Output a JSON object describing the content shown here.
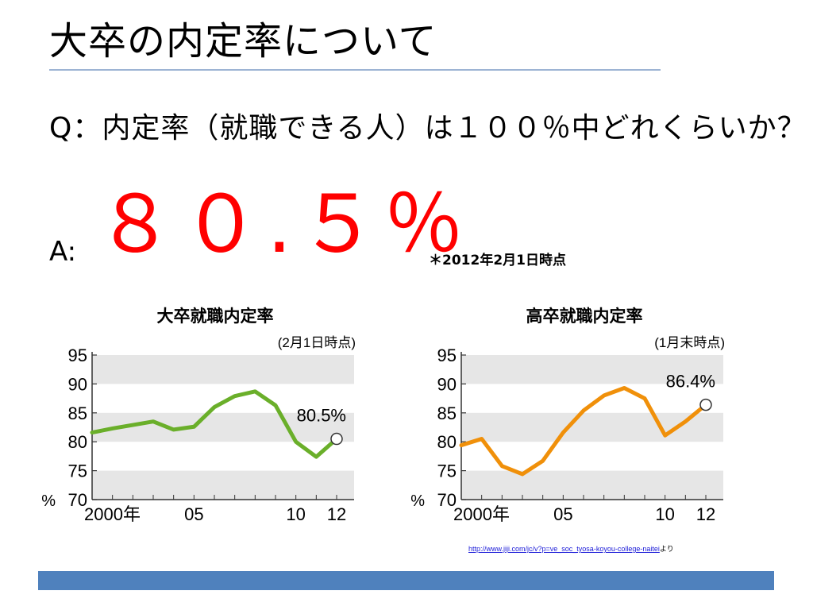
{
  "slide": {
    "title": "大卒の内定率について",
    "question": "Q：内定率（就職できる人）は１００％中どれくらいか？",
    "answer_prefix": "A:",
    "answer_value": "８０.５％",
    "answer_note": "＊2012年2月1日時点",
    "source_url": "http://www.jiji.com/jc/v?p=ve_soc_tyosa-koyou-college-naitei",
    "source_suffix": "より",
    "colors": {
      "accent_red": "#ff0000",
      "rule": "#9db4d4",
      "footer": "#4f81bd",
      "link": "#1b1bd8"
    }
  },
  "chart_data": [
    {
      "type": "line",
      "title": "大卒就職内定率",
      "subtitle": "(2月1日時点)",
      "ylabel": "%",
      "ylim": [
        70,
        95
      ],
      "yticks": [
        "95",
        "90",
        "85",
        "80",
        "75",
        "70"
      ],
      "xlim": [
        2000,
        2012
      ],
      "xtick_labels": [
        {
          "x": 2000,
          "label": "2000年"
        },
        {
          "x": 2005,
          "label": "05"
        },
        {
          "x": 2010,
          "label": "10"
        },
        {
          "x": 2012,
          "label": "12"
        }
      ],
      "x": [
        2000,
        2001,
        2002,
        2003,
        2004,
        2005,
        2006,
        2007,
        2008,
        2009,
        2010,
        2011,
        2012
      ],
      "values": [
        81.6,
        82.3,
        82.9,
        83.5,
        82.1,
        82.6,
        86.0,
        87.9,
        88.7,
        86.3,
        80.0,
        77.4,
        80.5
      ],
      "annotation": "80.5%",
      "line_color": "#6aaf2a",
      "band_color": "#e6e6e6",
      "grid": false
    },
    {
      "type": "line",
      "title": "高卒就職内定率",
      "subtitle": "(1月末時点)",
      "ylabel": "%",
      "ylim": [
        70,
        95
      ],
      "yticks": [
        "95",
        "90",
        "85",
        "80",
        "75",
        "70"
      ],
      "xlim": [
        2000,
        2012
      ],
      "xtick_labels": [
        {
          "x": 2000,
          "label": "2000年"
        },
        {
          "x": 2005,
          "label": "05"
        },
        {
          "x": 2010,
          "label": "10"
        },
        {
          "x": 2012,
          "label": "12"
        }
      ],
      "x": [
        2000,
        2001,
        2002,
        2003,
        2004,
        2005,
        2006,
        2007,
        2008,
        2009,
        2010,
        2011,
        2012
      ],
      "values": [
        79.4,
        80.5,
        75.8,
        74.4,
        76.7,
        81.6,
        85.4,
        88.0,
        89.3,
        87.5,
        81.1,
        83.5,
        86.4
      ],
      "annotation": "86.4%",
      "line_color": "#f0900a",
      "band_color": "#e6e6e6",
      "grid": false
    }
  ]
}
